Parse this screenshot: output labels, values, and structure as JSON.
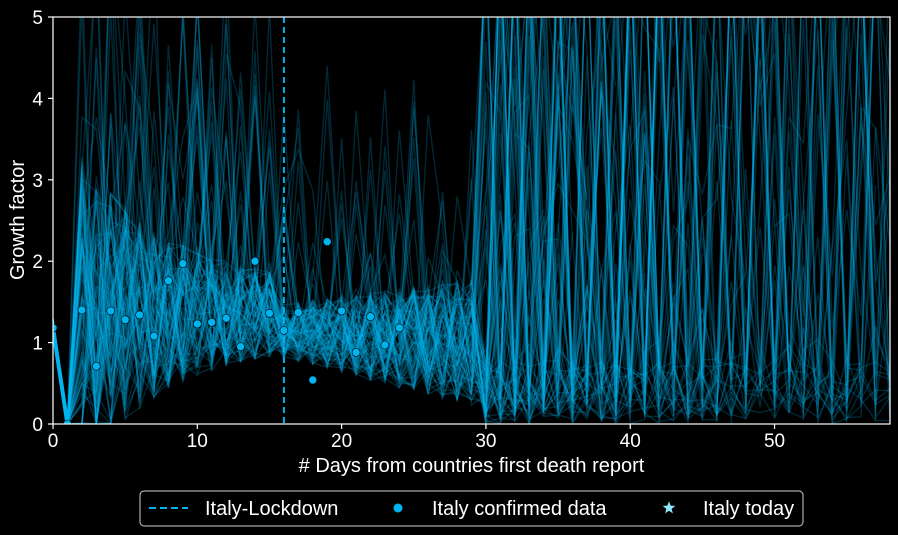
{
  "chart_data": {
    "type": "line",
    "xlabel": "# Days from countries first death report",
    "ylabel": "Growth factor",
    "xlim": [
      0,
      58
    ],
    "ylim": [
      0,
      5
    ],
    "xticks": [
      "0",
      "10",
      "20",
      "30",
      "40",
      "50"
    ],
    "yticks": [
      "0",
      "1",
      "2",
      "3",
      "4",
      "5"
    ],
    "grid": false,
    "legend_position": "bottom-center",
    "colors": {
      "accent": "#00b4f0",
      "background": "#000000",
      "axes": "#ffffff"
    },
    "lockdown": {
      "name": "Italy-Lockdown",
      "x": 16
    },
    "series": [
      {
        "name": "Italy confirmed data",
        "kind": "scatter",
        "x": [
          0,
          1,
          2,
          3,
          4,
          5,
          6,
          7,
          8,
          9,
          10,
          11,
          12,
          13,
          14,
          15,
          16,
          17,
          18,
          19,
          20,
          21,
          22,
          23,
          24
        ],
        "y": [
          1.18,
          0.0,
          1.4,
          0.71,
          1.39,
          1.28,
          1.34,
          1.08,
          1.76,
          1.97,
          1.23,
          1.25,
          1.3,
          0.95,
          2.0,
          1.36,
          1.15,
          1.37,
          0.54,
          2.24,
          1.39,
          0.88,
          1.32,
          0.97,
          1.18
        ]
      },
      {
        "name": "Italy today",
        "kind": "marker",
        "x": null,
        "y": null
      }
    ],
    "simulation": {
      "description_visible": false,
      "early_window": [
        1,
        15
      ],
      "mid_window": [
        15,
        29
      ],
      "late_window": [
        29,
        58
      ]
    }
  }
}
